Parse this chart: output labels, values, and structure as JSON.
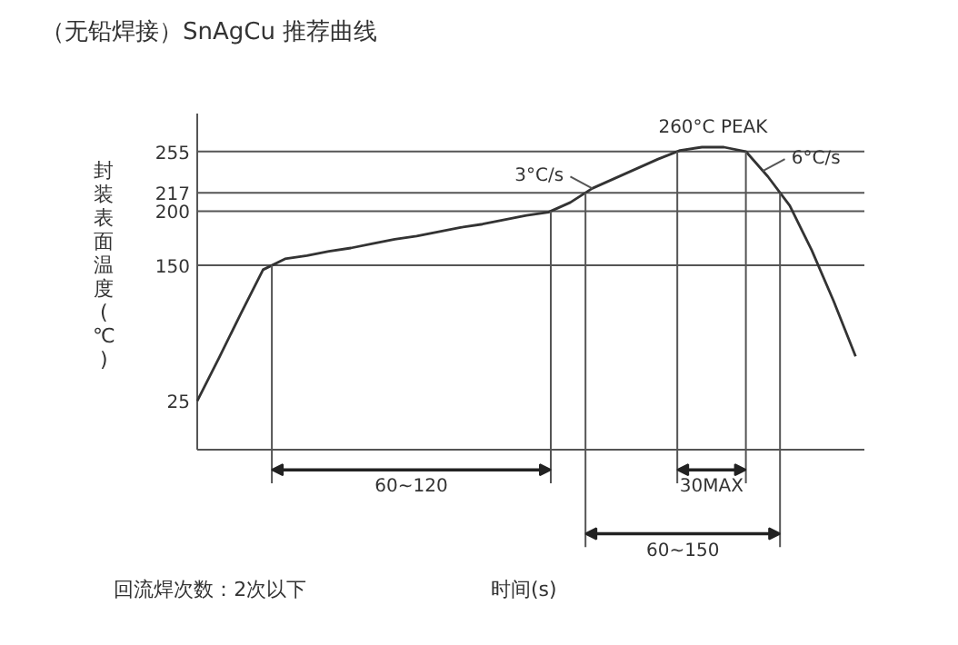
{
  "chart_data": {
    "type": "line",
    "title": "（无铅焊接）SnAgCu 推荐曲线",
    "ylabel": "封装表面温度(℃)",
    "tick_labels": "y",
    "categories": [
      null,
      null,
      null,
      null,
      null,
      null,
      null,
      null,
      null,
      null,
      null,
      null,
      null,
      null,
      null,
      null,
      null,
      null,
      null,
      null,
      null,
      null,
      null,
      null,
      null,
      null,
      null,
      null,
      null,
      null,
      null
    ],
    "ylim": [
      -20,
      290
    ],
    "yticks": [
      25,
      150,
      200,
      217,
      255
    ],
    "series": [
      {
        "color": "#333333",
        "values": [
          25,
          65,
          106,
          146,
          156,
          159,
          163,
          166,
          170,
          174,
          177,
          181,
          185,
          188,
          192,
          196,
          199,
          208,
          221,
          230,
          239,
          248,
          256,
          259,
          259,
          255,
          232,
          205,
          164,
          117,
          66
        ]
      }
    ],
    "ref_lines": [
      {
        "axis": "y",
        "value": 150,
        "label": null
      },
      {
        "axis": "y",
        "value": 200,
        "label": null
      },
      {
        "axis": "y",
        "value": 217,
        "label": null
      },
      {
        "axis": "y",
        "value": 255,
        "label": null
      }
    ],
    "annotations": [
      "60~120",
      "30MAX",
      "60~150",
      {
        "text": "3°C/s",
        "y": 221
      },
      "6°C/s",
      {
        "text": "260°C PEAK",
        "y": 259
      },
      "回流焊次数：2次以下",
      "时间(s)"
    ]
  }
}
